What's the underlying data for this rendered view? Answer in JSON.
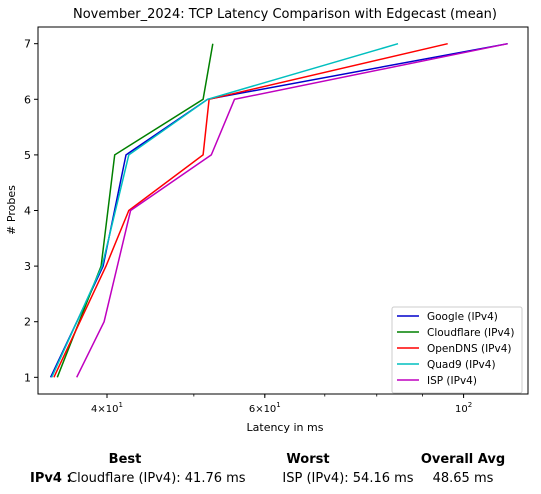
{
  "chart_data": {
    "type": "line",
    "title": "November_2024: TCP Latency Comparison with Edgecast (mean)",
    "xlabel": "Latency in ms",
    "ylabel": "# Probes",
    "xscale": "log",
    "xlim": [
      33.5,
      118
    ],
    "ylim": [
      0.7,
      7.3
    ],
    "xticks": [
      {
        "value": 40,
        "base": "4",
        "exp": "10",
        "exponent": "1"
      },
      {
        "value": 60,
        "base": "6",
        "exp": "10",
        "exponent": "1"
      },
      {
        "value": 100,
        "base": "10",
        "exp": "",
        "exponent": "2"
      }
    ],
    "yticks": [
      1,
      2,
      3,
      4,
      5,
      6,
      7
    ],
    "legend_position": "lower-right",
    "grid": false,
    "series": [
      {
        "name": "Google (IPv4)",
        "color": "#0000cc",
        "x": [
          34.6,
          39.6,
          42.0,
          51.8,
          112.0
        ],
        "y": [
          1,
          3,
          5,
          6,
          7
        ]
      },
      {
        "name": "Cloudflare (IPv4)",
        "color": "#008000",
        "x": [
          35.2,
          39.4,
          40.8,
          51.2,
          52.5
        ],
        "y": [
          1,
          3,
          5,
          6,
          7
        ]
      },
      {
        "name": "OpenDNS (IPv4)",
        "color": "#ff0000",
        "x": [
          34.9,
          39.9,
          42.3,
          51.2,
          52.0,
          96.0
        ],
        "y": [
          1,
          3,
          4,
          5,
          6,
          7
        ]
      },
      {
        "name": "Quad9 (IPv4)",
        "color": "#00bfbf",
        "x": [
          34.7,
          39.5,
          42.3,
          51.8,
          84.5
        ],
        "y": [
          1,
          3,
          5,
          6,
          7
        ]
      },
      {
        "name": "ISP (IPv4)",
        "color": "#bf00bf",
        "x": [
          37.0,
          39.7,
          42.5,
          52.3,
          55.5,
          112.0
        ],
        "y": [
          1,
          2,
          4,
          5,
          6,
          7
        ]
      }
    ]
  },
  "summary": {
    "best_header": "Best",
    "worst_header": "Worst",
    "avg_header": "Overall Avg",
    "row_label": "IPv4 :",
    "best_value": "Cloudflare (IPv4): 41.76 ms",
    "worst_value": "ISP (IPv4): 54.16 ms",
    "avg_value": "48.65 ms"
  }
}
